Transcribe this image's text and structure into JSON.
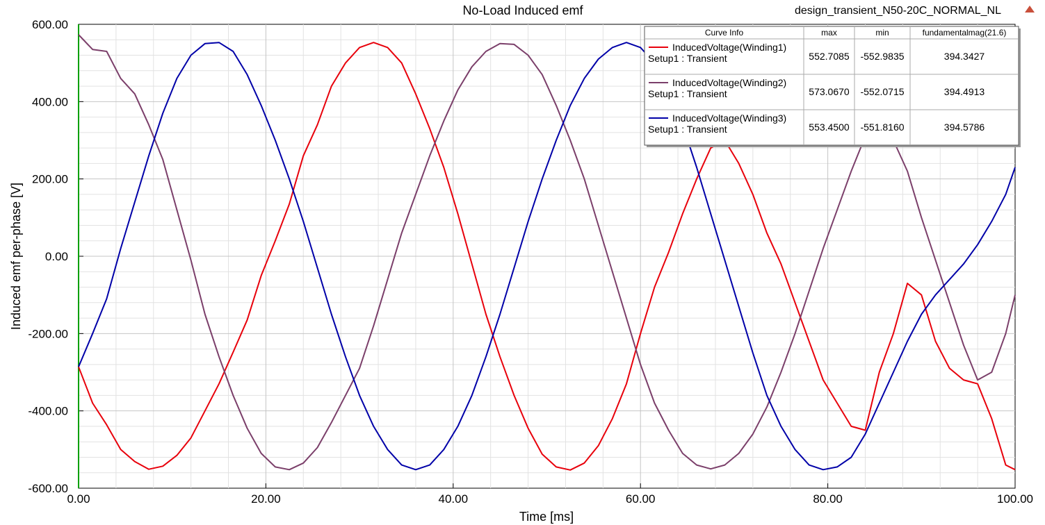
{
  "chart_data": {
    "type": "line",
    "title": "No-Load Induced emf",
    "design_name": "design_transient_N50-20C_NORMAL_NL",
    "xlabel": "Time [ms]",
    "ylabel": "Induced emf per-phase [V]",
    "xlim": [
      0,
      100
    ],
    "ylim": [
      -600,
      600
    ],
    "x_ticks": [
      "0.00",
      "20.00",
      "40.00",
      "60.00",
      "80.00",
      "100.00"
    ],
    "y_ticks": [
      "600.00",
      "400.00",
      "200.00",
      "0.00",
      "-200.00",
      "-400.00",
      "-600.00"
    ],
    "grid": true,
    "legend_position": "top-right",
    "legend_headers": [
      "Curve Info",
      "max",
      "min",
      "fundamentalmag(21.6)"
    ],
    "x": [
      0,
      1.5,
      3,
      4.5,
      6,
      7.5,
      9,
      10.5,
      12,
      13.5,
      15,
      16.5,
      18,
      19.5,
      21,
      22.5,
      24,
      25.5,
      27,
      28.5,
      30,
      31.5,
      33,
      34.5,
      36,
      37.5,
      39,
      40.5,
      42,
      43.5,
      45,
      46.5,
      48,
      49.5,
      51,
      52.5,
      54,
      55.5,
      57,
      58.5,
      60,
      61.5,
      63,
      64.5,
      66,
      67.5,
      69,
      70.5,
      72,
      73.5,
      75,
      76.5,
      78,
      79.5,
      81,
      82.5,
      84,
      85.5,
      87,
      88.5,
      90,
      91.5,
      93,
      94.5,
      96,
      97.5,
      99,
      100
    ],
    "series": [
      {
        "name": "InducedVoltage(Winding1)",
        "setup": "Setup1 : Transient",
        "color": "#e8000b",
        "max": "552.7085",
        "min": "-552.9835",
        "fundamental": "394.3427",
        "values": [
          -286,
          -380,
          -436,
          -500,
          -531,
          -551,
          -543,
          -515,
          -470,
          -400,
          -330,
          -248,
          -165,
          -50,
          40,
          135,
          260,
          340,
          440,
          500,
          540,
          553,
          540,
          500,
          420,
          330,
          230,
          110,
          -20,
          -150,
          -260,
          -360,
          -445,
          -512,
          -545,
          -553,
          -535,
          -490,
          -420,
          -330,
          -200,
          -80,
          10,
          110,
          200,
          280,
          300,
          240,
          160,
          60,
          -20,
          -120,
          -220,
          -320,
          -380,
          -440,
          -450,
          -300,
          -200,
          -70,
          -100,
          -220,
          -290,
          -320,
          -330,
          -420,
          -540,
          -552
        ]
      },
      {
        "name": "InducedVoltage(Winding2)",
        "setup": "Setup1 : Transient",
        "color": "#7b3f6a",
        "max": "573.0670",
        "min": "-552.0715",
        "fundamental": "394.4913",
        "values": [
          573,
          535,
          530,
          460,
          420,
          340,
          250,
          120,
          -10,
          -150,
          -260,
          -360,
          -445,
          -510,
          -545,
          -552,
          -535,
          -495,
          -430,
          -360,
          -290,
          -180,
          -60,
          60,
          160,
          260,
          350,
          430,
          490,
          530,
          550,
          548,
          520,
          470,
          390,
          300,
          200,
          80,
          -40,
          -160,
          -280,
          -380,
          -450,
          -510,
          -540,
          -550,
          -540,
          -510,
          -460,
          -390,
          -300,
          -200,
          -90,
          20,
          120,
          220,
          310,
          380,
          300,
          220,
          100,
          -10,
          -120,
          -230,
          -320,
          -300,
          -200,
          -100
        ]
      },
      {
        "name": "InducedVoltage(Winding3)",
        "setup": "Setup1 : Transient",
        "color": "#0000a8",
        "max": "553.4500",
        "min": "-551.8160",
        "fundamental": "394.5786",
        "values": [
          -286,
          -200,
          -110,
          20,
          140,
          260,
          370,
          460,
          520,
          550,
          553,
          530,
          470,
          390,
          300,
          200,
          90,
          -30,
          -150,
          -260,
          -360,
          -440,
          -500,
          -540,
          -552,
          -540,
          -500,
          -440,
          -360,
          -260,
          -150,
          -30,
          90,
          200,
          300,
          390,
          460,
          510,
          540,
          553,
          540,
          500,
          430,
          340,
          230,
          110,
          -10,
          -130,
          -250,
          -360,
          -440,
          -500,
          -540,
          -552,
          -545,
          -520,
          -460,
          -380,
          -300,
          -220,
          -150,
          -100,
          -60,
          -20,
          30,
          90,
          160,
          230
        ]
      }
    ]
  }
}
